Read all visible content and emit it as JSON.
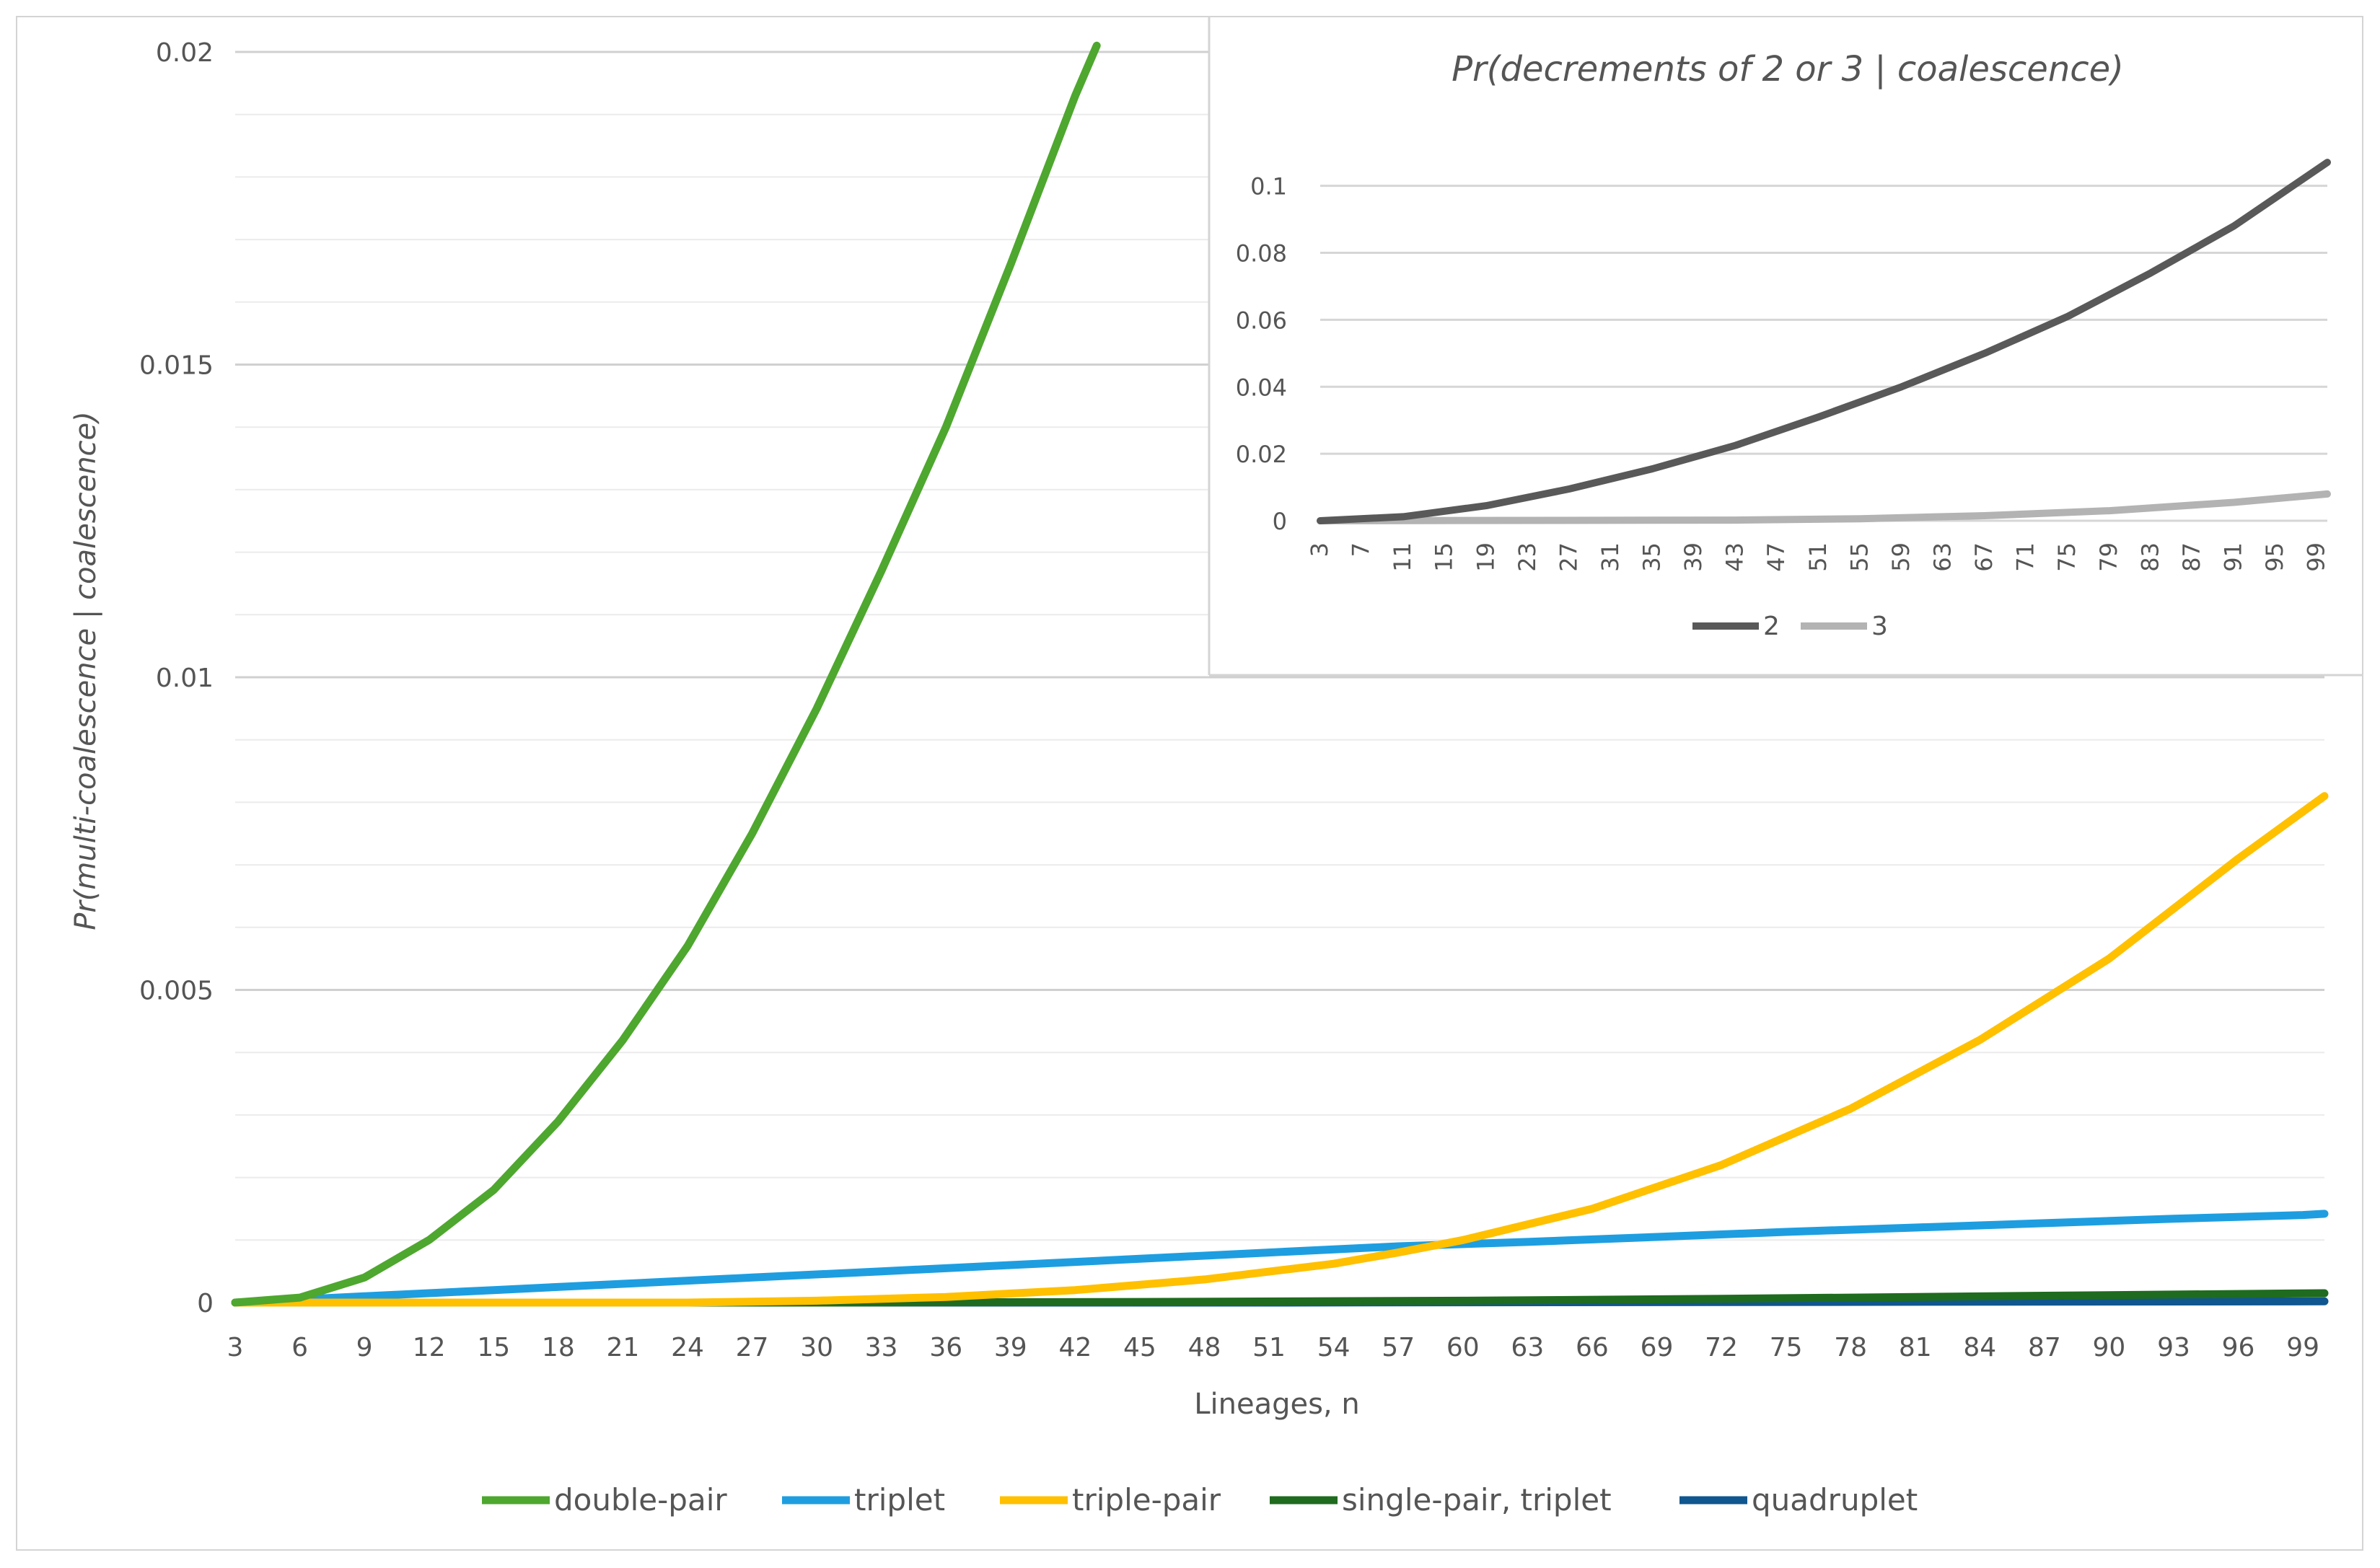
{
  "chart_data": [
    {
      "type": "line",
      "title": "",
      "xlabel": "Lineages, n",
      "ylabel": "Pr(multi-coalescence | coalescence)",
      "xlim": [
        3,
        100
      ],
      "ylim": [
        0,
        0.02
      ],
      "grid": true,
      "legend_position": "bottom",
      "x_tick_labels": [
        "3",
        "6",
        "9",
        "12",
        "15",
        "18",
        "21",
        "24",
        "27",
        "30",
        "33",
        "36",
        "39",
        "42",
        "45",
        "48",
        "51",
        "54",
        "57",
        "60",
        "63",
        "66",
        "69",
        "72",
        "75",
        "78",
        "81",
        "84",
        "87",
        "90",
        "93",
        "96",
        "99"
      ],
      "y_tick_labels": [
        "0",
        "0.005",
        "0.01",
        "0.015",
        "0.02"
      ],
      "series": [
        {
          "name": "double-pair",
          "color": "#4ea72e",
          "x": [
            3,
            6,
            9,
            12,
            15,
            18,
            21,
            24,
            27,
            30,
            33,
            36,
            39,
            42,
            43
          ],
          "y": [
            0,
            8e-05,
            0.0004,
            0.001,
            0.0018,
            0.0029,
            0.0042,
            0.0057,
            0.0075,
            0.0095,
            0.0117,
            0.014,
            0.0166,
            0.0193,
            0.0201
          ]
        },
        {
          "name": "triplet",
          "color": "#1e9ee0",
          "x": [
            3,
            9,
            15,
            21,
            27,
            33,
            39,
            45,
            51,
            57,
            63,
            69,
            75,
            81,
            87,
            93,
            99,
            100
          ],
          "y": [
            0,
            0.0001,
            0.0002,
            0.0003,
            0.0004,
            0.0005,
            0.0006,
            0.0007,
            0.0008,
            0.0009,
            0.00097,
            0.00105,
            0.00113,
            0.0012,
            0.00127,
            0.00134,
            0.0014,
            0.00142
          ]
        },
        {
          "name": "triple-pair",
          "color": "#ffc000",
          "x": [
            3,
            24,
            30,
            36,
            42,
            48,
            54,
            57,
            60,
            66,
            72,
            78,
            84,
            90,
            96,
            100
          ],
          "y": [
            0,
            0,
            3e-05,
            9e-05,
            0.0002,
            0.00037,
            0.00062,
            0.0008,
            0.001,
            0.0015,
            0.0022,
            0.0031,
            0.0042,
            0.0055,
            0.0071,
            0.0081
          ]
        },
        {
          "name": "single-pair, triplet",
          "color": "#1f6b1f",
          "x": [
            3,
            30,
            45,
            60,
            72,
            87,
            100
          ],
          "y": [
            0,
            0,
            1e-05,
            3e-05,
            6e-05,
            0.00011,
            0.00015
          ]
        },
        {
          "name": "quadruplet",
          "color": "#10568f",
          "x": [
            3,
            50,
            100
          ],
          "y": [
            0,
            0,
            2e-05
          ]
        }
      ]
    },
    {
      "type": "line",
      "title": "Pr(decrements of 2 or 3 | coalescence)",
      "xlabel": "",
      "ylabel": "",
      "xlim": [
        3,
        100
      ],
      "ylim": [
        0,
        0.1
      ],
      "grid": true,
      "legend_position": "bottom",
      "x_tick_labels": [
        "3",
        "7",
        "11",
        "15",
        "19",
        "23",
        "27",
        "31",
        "35",
        "39",
        "43",
        "47",
        "51",
        "55",
        "59",
        "63",
        "67",
        "71",
        "75",
        "79",
        "83",
        "87",
        "91",
        "95",
        "99"
      ],
      "y_tick_labels": [
        "0",
        "0.02",
        "0.04",
        "0.06",
        "0.08",
        "0.1"
      ],
      "series": [
        {
          "name": "2",
          "color": "#595959",
          "x": [
            3,
            11,
            19,
            27,
            35,
            43,
            51,
            59,
            67,
            75,
            83,
            91,
            100
          ],
          "y": [
            0,
            0.0012,
            0.0045,
            0.0095,
            0.0155,
            0.0225,
            0.031,
            0.04,
            0.05,
            0.061,
            0.074,
            0.088,
            0.107
          ]
        },
        {
          "name": "3",
          "color": "#b3b3b3",
          "x": [
            3,
            43,
            55,
            67,
            79,
            91,
            100
          ],
          "y": [
            0,
            0.0002,
            0.0006,
            0.0015,
            0.003,
            0.0055,
            0.008
          ]
        }
      ]
    }
  ]
}
